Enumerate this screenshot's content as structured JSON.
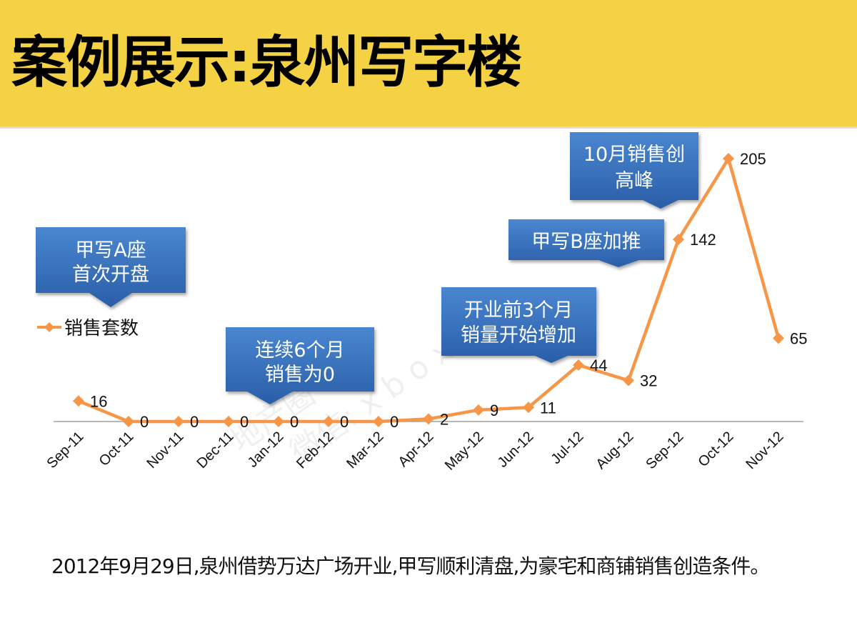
{
  "header": {
    "title": "案例展示:泉州写字楼",
    "bg_color": "#f5d244"
  },
  "legend": {
    "label": "销售套数",
    "color": "#f79646"
  },
  "callouts": [
    {
      "id": "a",
      "line1": "甲写A座",
      "line2": "首次开盘"
    },
    {
      "id": "zero",
      "line1": "连续6个月",
      "line2": "销售为0"
    },
    {
      "id": "pre",
      "line1": "开业前3个月",
      "line2": "销量开始增加"
    },
    {
      "id": "b",
      "line1": "甲写B座加推",
      "line2": ""
    },
    {
      "id": "peak",
      "line1": "10月销售创",
      "line2": "高峰"
    }
  ],
  "watermark": {
    "line1": "地产圈",
    "line2": "微信: x b o x 2 0 1"
  },
  "footer": {
    "text": "2012年9月29日,泉州借势万达广场开业,甲写顺利清盘,为豪宅和商铺销售创造条件。"
  },
  "chart_data": {
    "type": "line",
    "title": "",
    "xlabel": "",
    "ylabel": "",
    "categories": [
      "Sep-11",
      "Oct-11",
      "Nov-11",
      "Dec-11",
      "Jan-12",
      "Feb-12",
      "Mar-12",
      "Apr-12",
      "May-12",
      "Jun-12",
      "Jul-12",
      "Aug-12",
      "Sep-12",
      "Oct-12",
      "Nov-12"
    ],
    "series": [
      {
        "name": "销售套数",
        "color": "#f79646",
        "values": [
          16,
          0,
          0,
          0,
          0,
          0,
          0,
          2,
          9,
          11,
          44,
          32,
          142,
          205,
          65
        ]
      }
    ],
    "ylim": [
      0,
      205
    ],
    "grid": false,
    "legend_position": "left",
    "data_labels": true,
    "annotations": [
      "甲写A座首次开盘",
      "连续6个月销售为0",
      "开业前3个月销量开始增加",
      "甲写B座加推",
      "10月销售创高峰"
    ]
  }
}
